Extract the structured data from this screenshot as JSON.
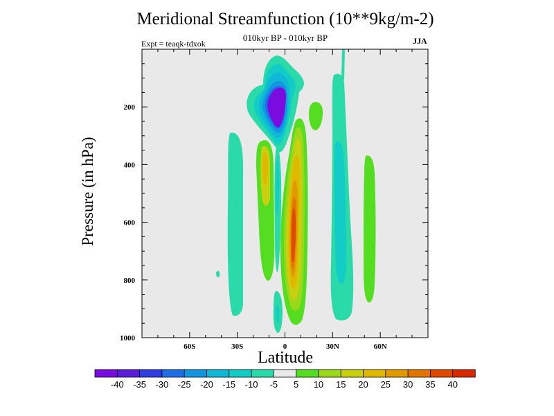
{
  "chart_data": {
    "type": "heatmap",
    "title": "Meridional Streamfunction (10**9kg/m-2)",
    "subtitle": "010kyr BP - 010kyr BP",
    "left_label": "Expt = teaqk-tdxok",
    "right_label": "JJA",
    "xlabel": "Latitude",
    "ylabel": "Pressure (in hPa)",
    "xlim": [
      -90,
      90
    ],
    "ylim": [
      1000,
      0
    ],
    "x_ticks": [
      {
        "v": -60,
        "label": "60S"
      },
      {
        "v": -30,
        "label": "30S"
      },
      {
        "v": 0,
        "label": "0"
      },
      {
        "v": 30,
        "label": "30N"
      },
      {
        "v": 60,
        "label": "60N"
      }
    ],
    "y_ticks": [
      {
        "v": 200,
        "label": "200"
      },
      {
        "v": 400,
        "label": "400"
      },
      {
        "v": 600,
        "label": "600"
      },
      {
        "v": 800,
        "label": "800"
      },
      {
        "v": 1000,
        "label": "1000"
      }
    ],
    "levels": [
      -40,
      -35,
      -30,
      -25,
      -20,
      -15,
      -10,
      -5,
      5,
      10,
      15,
      20,
      25,
      30,
      35,
      40
    ],
    "level_labels": [
      "-40",
      "-35",
      "-30",
      "-25",
      "-20",
      "-15",
      "-10",
      "-5",
      "5",
      "10",
      "15",
      "20",
      "25",
      "30",
      "35",
      "40"
    ],
    "colors": [
      "#7a0ce0",
      "#5a1cd8",
      "#2f3ee0",
      "#1f6ee8",
      "#1396e0",
      "#10b8d8",
      "#12ccc6",
      "#2adaa8",
      "#e9e9e9",
      "#55dd22",
      "#9ad81a",
      "#c8d010",
      "#e0b800",
      "#e09a00",
      "#e27400",
      "#e04a00",
      "#d82800"
    ],
    "features": [
      {
        "name": "upper-negative-cell",
        "lat": [
          -20,
          10
        ],
        "p": [
          0,
          330
        ],
        "min": -40
      },
      {
        "name": "subtropical-positive-cell",
        "lat": [
          0,
          15
        ],
        "p": [
          240,
          960
        ],
        "max": 35
      },
      {
        "name": "southern-midlatitude-band",
        "lat": [
          -33,
          -25
        ],
        "p": [
          290,
          935
        ],
        "value": -10
      },
      {
        "name": "southern-positive-band",
        "lat": [
          -17,
          -7
        ],
        "p": [
          260,
          790
        ],
        "value": 15
      },
      {
        "name": "northern-negative-band",
        "lat": [
          28,
          42
        ],
        "p": [
          100,
          960
        ],
        "value": -10
      },
      {
        "name": "northern-positive-band",
        "lat": [
          50,
          56
        ],
        "p": [
          400,
          830
        ],
        "value": 5
      },
      {
        "name": "upper-positive-spot",
        "lat": [
          16,
          24
        ],
        "p": [
          170,
          260
        ],
        "value": 5
      }
    ]
  }
}
